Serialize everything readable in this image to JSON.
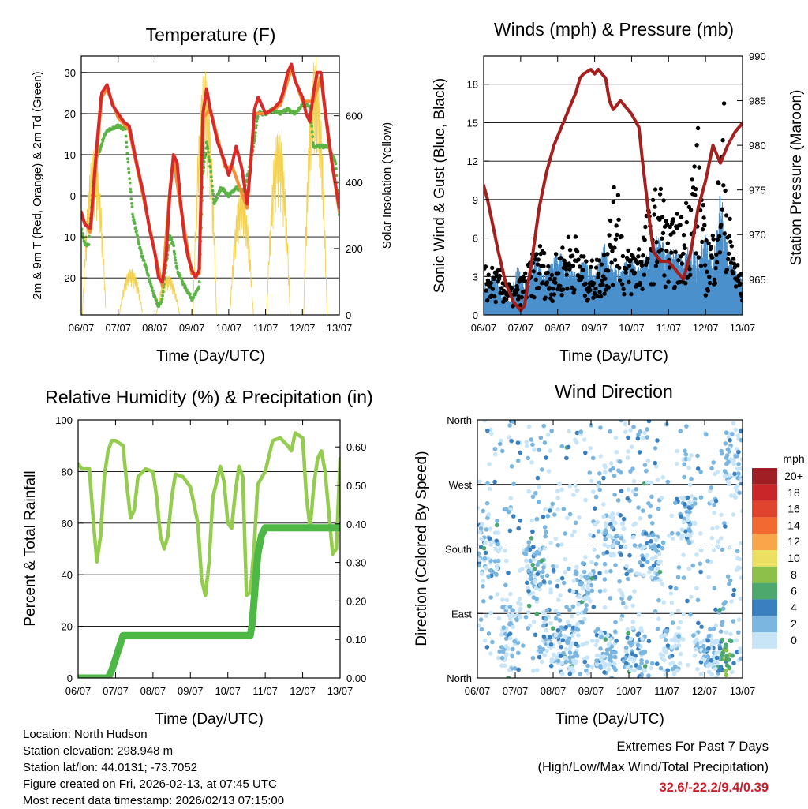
{
  "chart_data": [
    {
      "type": "line",
      "title": "Temperature (F)",
      "xlabel": "Time (Day/UTC)",
      "ylabel": "2m & 9m T (Red, Orange) & 2m Td (Green)",
      "y2label": "Solar Insolation (Yellow)",
      "x_ticks": [
        "06/07",
        "07/07",
        "08/07",
        "09/07",
        "10/07",
        "11/07",
        "12/07",
        "13/07"
      ],
      "ylim": [
        -29,
        34
      ],
      "y_ticks": [
        -20,
        -10,
        0,
        10,
        20,
        30
      ],
      "y2lim": [
        0,
        780
      ],
      "y2_ticks": [
        0,
        200,
        400,
        600
      ],
      "grid": true,
      "series": [
        {
          "name": "2m T",
          "color": "#d92a2a",
          "x": [
            0,
            0.1,
            0.25,
            0.4,
            0.55,
            0.7,
            0.85,
            1.0,
            1.15,
            1.3,
            1.5,
            1.7,
            1.85,
            2.0,
            2.1,
            2.2,
            2.3,
            2.4,
            2.5,
            2.6,
            2.7,
            2.8,
            2.9,
            3.0,
            3.1,
            3.2,
            3.3,
            3.4,
            3.5,
            3.7,
            3.9,
            4.0,
            4.1,
            4.2,
            4.35,
            4.5,
            4.6,
            4.7,
            4.8,
            5.0,
            5.2,
            5.4,
            5.5,
            5.6,
            5.7,
            5.8,
            6.0,
            6.1,
            6.2,
            6.3,
            6.4,
            6.5,
            6.6,
            6.7,
            6.8,
            7.0
          ],
          "y": [
            -4,
            -7,
            -8,
            10,
            25,
            27,
            22,
            20,
            18,
            17,
            8,
            0,
            -8,
            -14,
            -20,
            -21,
            -15,
            0,
            10,
            8,
            -2,
            -10,
            -15,
            -18,
            -20,
            -18,
            20,
            26,
            21,
            13,
            8,
            5,
            8,
            12,
            7,
            -2,
            8,
            21,
            24,
            20,
            21,
            23,
            26,
            30,
            32,
            28,
            24,
            20,
            18,
            25,
            30,
            30,
            22,
            15,
            8,
            -3
          ]
        },
        {
          "name": "9m T",
          "color": "#f29033",
          "x": [
            0,
            0.25,
            0.55,
            0.7,
            1.0,
            1.3,
            1.7,
            2.0,
            2.2,
            2.4,
            2.5,
            2.7,
            3.0,
            3.2,
            3.3,
            3.5,
            3.9,
            4.1,
            4.5,
            4.7,
            5.0,
            5.4,
            5.7,
            6.0,
            6.3,
            6.5,
            6.7,
            7.0
          ],
          "y": [
            -5,
            -9,
            24,
            26,
            19,
            16,
            -1,
            -14,
            -22,
            1,
            9,
            -3,
            -19,
            -19,
            19,
            21,
            7,
            7,
            -3,
            20,
            20,
            22,
            31,
            23,
            23,
            29,
            14,
            -4
          ]
        },
        {
          "name": "2m Td",
          "color": "#5cb346",
          "x": [
            0,
            0.1,
            0.2,
            0.3,
            0.4,
            0.5,
            0.6,
            0.7,
            0.8,
            1.0,
            1.2,
            1.3,
            1.4,
            1.6,
            1.8,
            2.0,
            2.1,
            2.2,
            2.3,
            2.4,
            2.5,
            2.6,
            2.7,
            2.8,
            3.0,
            3.1,
            3.2,
            3.3,
            3.4,
            3.5,
            3.6,
            3.8,
            4.0,
            4.2,
            4.4,
            4.6,
            4.8,
            5.0,
            5.2,
            5.4,
            5.6,
            5.8,
            6.0,
            6.2,
            6.3,
            6.5,
            6.7,
            6.9,
            7.0
          ],
          "y": [
            -8,
            -12,
            -12,
            0,
            9,
            11,
            14,
            16,
            16,
            17,
            16,
            5,
            -5,
            -13,
            -19,
            -25,
            -27,
            -25,
            -17,
            -10,
            -12,
            -18,
            -20,
            -22,
            -25,
            -24,
            -22,
            5,
            13,
            7,
            -2,
            2,
            0,
            2,
            1,
            8,
            20,
            20,
            21,
            20,
            21,
            20,
            22,
            22,
            12,
            12,
            12,
            8,
            -5
          ]
        }
      ],
      "series_y2": [
        {
          "name": "Solar Insolation",
          "color": "#f4d250",
          "days": [
            0.35,
            1.35,
            2.35,
            3.35,
            4.35,
            5.35,
            6.35
          ],
          "peaks": [
            500,
            140,
            120,
            740,
            380,
            560,
            780
          ]
        }
      ]
    },
    {
      "type": "scatter",
      "title": "Winds (mph) & Pressure (mb)",
      "xlabel": "Time (Day/UTC)",
      "ylabel": "Sonic Wind & Gust (Blue, Black)",
      "y2label": "Station Pressure (Maroon)",
      "x_ticks": [
        "06/07",
        "07/07",
        "08/07",
        "09/07",
        "10/07",
        "11/07",
        "12/07",
        "13/07"
      ],
      "ylim": [
        0,
        20.2
      ],
      "y_ticks": [
        0,
        3,
        6,
        9,
        12,
        15,
        18
      ],
      "y2lim": [
        961,
        990
      ],
      "y2_ticks": [
        965,
        970,
        975,
        980,
        985,
        990
      ],
      "grid": true,
      "pressure": {
        "color": "#a3201f",
        "x": [
          0,
          0.1,
          0.2,
          0.4,
          0.6,
          0.8,
          1.0,
          1.1,
          1.3,
          1.5,
          1.7,
          1.9,
          2.1,
          2.3,
          2.5,
          2.6,
          2.7,
          2.9,
          3.0,
          3.1,
          3.3,
          3.4,
          3.5,
          3.7,
          3.8,
          4.0,
          4.2,
          4.3,
          4.5,
          4.6,
          4.8,
          5.0,
          5.2,
          5.4,
          5.6,
          5.8,
          6.0,
          6.1,
          6.2,
          6.3,
          6.4,
          6.6,
          6.8,
          7.0
        ],
        "y": [
          975.5,
          974,
          972,
          968,
          964.5,
          962.5,
          961.5,
          962,
          967,
          973,
          977,
          980,
          982,
          984,
          986,
          987.5,
          988,
          988.5,
          988,
          988.5,
          987.5,
          985,
          984,
          985,
          984.5,
          983.5,
          982,
          978,
          971,
          968,
          967,
          967,
          966,
          965,
          968,
          973,
          976,
          978,
          980,
          979,
          978,
          980,
          981.5,
          982.5
        ]
      },
      "wind": {
        "name": "Sonic Wind",
        "color": "#4a90cc",
        "typical": 3
      },
      "gust": {
        "name": "Gust",
        "color": "#000000",
        "max": 18.5
      }
    },
    {
      "type": "line",
      "title": "Relative Humidity (%) & Precipitation (in)",
      "xlabel": "Time (Day/UTC)",
      "ylabel": "Percent & Total Rainfall",
      "x_ticks": [
        "06/07",
        "07/07",
        "08/07",
        "09/07",
        "10/07",
        "11/07",
        "12/07",
        "13/07"
      ],
      "ylim": [
        0,
        100
      ],
      "y_ticks": [
        0,
        20,
        40,
        60,
        80,
        100
      ],
      "y2lim": [
        0,
        0.67
      ],
      "y2_ticks": [
        "0.00",
        "0.10",
        "0.20",
        "0.30",
        "0.40",
        "0.50",
        "0.60"
      ],
      "grid": true,
      "series": [
        {
          "name": "Relative Humidity",
          "color": "#93cc4e",
          "x": [
            0,
            0.1,
            0.2,
            0.3,
            0.4,
            0.5,
            0.6,
            0.7,
            0.8,
            0.9,
            1.0,
            1.2,
            1.3,
            1.4,
            1.5,
            1.6,
            1.8,
            2.0,
            2.1,
            2.2,
            2.3,
            2.4,
            2.5,
            2.6,
            2.8,
            3.0,
            3.2,
            3.3,
            3.4,
            3.5,
            3.6,
            3.8,
            3.9,
            4.0,
            4.1,
            4.2,
            4.3,
            4.4,
            4.5,
            4.6,
            4.7,
            4.8,
            5.0,
            5.2,
            5.4,
            5.6,
            5.7,
            5.8,
            6.0,
            6.1,
            6.2,
            6.3,
            6.4,
            6.5,
            6.6,
            6.8,
            6.9,
            7.0
          ],
          "y": [
            83,
            81,
            81,
            81,
            62,
            45,
            55,
            78,
            88,
            92,
            92,
            90,
            75,
            62,
            65,
            78,
            81,
            80,
            70,
            55,
            50,
            55,
            70,
            79,
            78,
            74,
            60,
            38,
            32,
            45,
            70,
            82,
            76,
            60,
            58,
            72,
            82,
            78,
            32,
            33,
            50,
            75,
            80,
            92,
            93,
            90,
            88,
            95,
            93,
            70,
            58,
            75,
            85,
            88,
            80,
            48,
            50,
            85
          ]
        },
        {
          "name": "Total Rainfall",
          "color": "#4db845",
          "axis": "y2",
          "x": [
            0,
            0.4,
            0.8,
            0.9,
            1.0,
            1.1,
            1.2,
            1.4,
            2.0,
            3.0,
            4.0,
            4.6,
            4.65,
            4.7,
            4.8,
            4.9,
            5.0,
            5.1,
            5.3,
            6.0,
            7.0
          ],
          "y": [
            0,
            0,
            0,
            0.02,
            0.05,
            0.08,
            0.11,
            0.11,
            0.11,
            0.11,
            0.11,
            0.11,
            0.14,
            0.2,
            0.32,
            0.37,
            0.39,
            0.39,
            0.39,
            0.39,
            0.39
          ]
        }
      ]
    },
    {
      "type": "scatter",
      "title": "Wind Direction",
      "xlabel": "Time (Day/UTC)",
      "ylabel": "Direction (Colored By Speed)",
      "x_ticks": [
        "06/07",
        "07/07",
        "08/07",
        "09/07",
        "10/07",
        "11/07",
        "12/07",
        "13/07"
      ],
      "y_ticks": [
        "North",
        "East",
        "South",
        "West",
        "North"
      ],
      "ylim": [
        0,
        360
      ],
      "legend_title": "mph",
      "legend_labels": [
        "20+",
        "18",
        "16",
        "14",
        "12",
        "10",
        "8",
        "6",
        "4",
        "2",
        "0"
      ],
      "legend_colors": [
        "#a01f24",
        "#c9262a",
        "#e0432e",
        "#f26a31",
        "#f9a64b",
        "#ebe062",
        "#8cc04a",
        "#4ca86c",
        "#3a80c0",
        "#7ab6e0",
        "#c8e5f8"
      ],
      "legend_placement": "right",
      "grid": true
    }
  ],
  "footer": {
    "location": "Location: North Hudson",
    "elevation": "Station elevation: 298.948 m",
    "latlon": "Station lat/lon: 44.0131; -73.7052",
    "created": "Figure created on Fri, 2026-02-13, at 07:45 UTC",
    "recent": "Most recent data timestamp: 2026/02/13 07:15:00"
  },
  "extremes": {
    "title": "Extremes For Past 7 Days",
    "subtitle": "(High/Low/Max Wind/Total Precipitation)",
    "values": "32.6/-22.2/9.4/0.39"
  }
}
